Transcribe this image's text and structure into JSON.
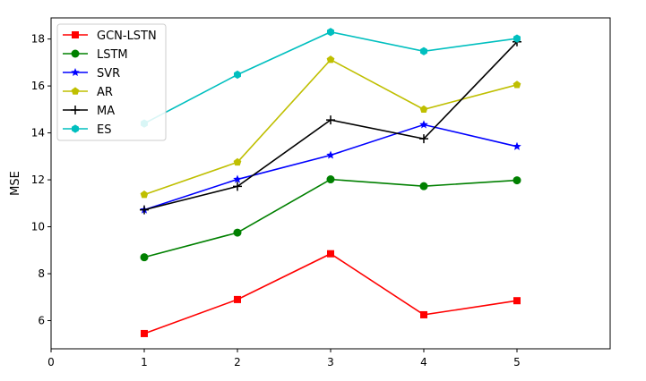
{
  "chart_data": {
    "type": "line",
    "title": "",
    "xlabel": "",
    "ylabel": "MSE",
    "xlim": [
      0,
      6
    ],
    "ylim": [
      4.8,
      18.9
    ],
    "xticks": [
      0,
      1,
      2,
      3,
      4,
      5
    ],
    "yticks": [
      6,
      8,
      10,
      12,
      14,
      16,
      18
    ],
    "grid": false,
    "legend_position": "top-left",
    "x": [
      1,
      2,
      3,
      4,
      5
    ],
    "series": [
      {
        "name": "GCN-LSTN",
        "color": "#ff0000",
        "marker": "square",
        "values": [
          5.45,
          6.9,
          8.85,
          6.25,
          6.85
        ]
      },
      {
        "name": "LSTM",
        "color": "#008000",
        "marker": "circle",
        "values": [
          8.7,
          9.75,
          12.02,
          11.73,
          11.98
        ]
      },
      {
        "name": "SVR",
        "color": "#0000ff",
        "marker": "star",
        "values": [
          10.72,
          12.02,
          13.05,
          14.35,
          13.42
        ]
      },
      {
        "name": "AR",
        "color": "#bfbf00",
        "marker": "pentagon",
        "values": [
          11.37,
          12.75,
          17.12,
          15.0,
          16.05
        ]
      },
      {
        "name": "MA",
        "color": "#000000",
        "marker": "plus",
        "values": [
          10.72,
          11.72,
          14.55,
          13.75,
          17.88
        ]
      },
      {
        "name": "ES",
        "color": "#00bfbf",
        "marker": "hexagon",
        "values": [
          14.4,
          16.48,
          18.3,
          17.48,
          18.02
        ]
      }
    ]
  }
}
